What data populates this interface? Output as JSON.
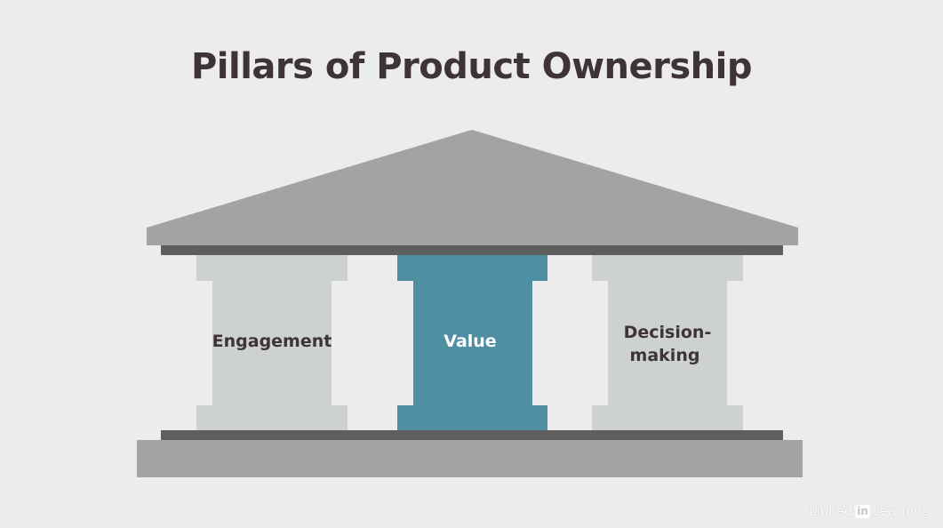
{
  "title": "Pillars of Product Ownership",
  "pillars": [
    {
      "label": "Engagement",
      "color": "#ced1d2",
      "text_color": "#3e3338"
    },
    {
      "label": "Value",
      "color": "#4e8fa1",
      "text_color": "#ffffff"
    },
    {
      "label_line1": "Decision-",
      "label_line2": "making",
      "color": "#ced1d2",
      "text_color": "#3e3338"
    }
  ],
  "colors": {
    "background": "#ececec",
    "roof": "#a3a3a3",
    "beam": "#5e5e5e",
    "base": "#a3a3a3",
    "title": "#3e3338"
  },
  "watermark": {
    "brand_left": "Linked",
    "brand_box": "in",
    "brand_right": "Learning"
  }
}
